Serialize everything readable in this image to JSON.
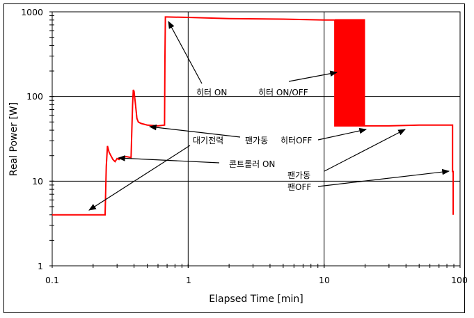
{
  "chart_data": {
    "type": "line",
    "title": "",
    "xlabel": "Elapsed Time [min]",
    "ylabel": "Real Power [W]",
    "xscale": "log",
    "yscale": "log",
    "xlim": [
      0.1,
      100
    ],
    "ylim": [
      1,
      1000
    ],
    "x_ticks": [
      "0.1",
      "1",
      "10",
      "100"
    ],
    "y_ticks": [
      "1",
      "10",
      "100",
      "1000"
    ],
    "grid": "major",
    "legend": "none",
    "series": [
      {
        "name": "Real Power",
        "color": "#ff0000",
        "x": [
          0.1,
          0.245,
          0.25,
          0.255,
          0.262,
          0.27,
          0.28,
          0.29,
          0.3,
          0.31,
          0.32,
          0.35,
          0.38,
          0.385,
          0.39,
          0.395,
          0.4,
          0.41,
          0.42,
          0.43,
          0.45,
          0.5,
          0.6,
          0.67,
          0.675,
          0.68,
          0.7,
          1.0,
          2.0,
          5.0,
          10.0,
          12.0,
          12.0,
          20.0,
          20.0,
          30.0,
          50.0,
          88.0,
          88.0,
          89.0,
          89.0
        ],
        "y": [
          4,
          4,
          15,
          26,
          22,
          20,
          18,
          17,
          18.5,
          18,
          19,
          19.5,
          19,
          40,
          80,
          120,
          115,
          80,
          55,
          50,
          48,
          46,
          45,
          46,
          300,
          870,
          870,
          860,
          830,
          820,
          800,
          800,
          45,
          45,
          45,
          45,
          46,
          46,
          13,
          13,
          4
        ]
      }
    ],
    "oscillation_band": {
      "x_start": 12.0,
      "x_end": 20.0,
      "y_low": 45,
      "y_high": 820,
      "label": "히터 ON/OFF"
    },
    "annotations": [
      {
        "text": "히터 ON",
        "points_to": [
          0.7,
          870
        ]
      },
      {
        "text": "히터 ON/OFF",
        "points_to": [
          12,
          180
        ]
      },
      {
        "text": "팬가동",
        "points_to": [
          0.48,
          47
        ]
      },
      {
        "text": "히터OFF",
        "points_to": [
          20,
          44
        ]
      },
      {
        "text": "대기전력",
        "points_to": [
          0.18,
          4.5
        ]
      },
      {
        "text": "콘트롤러 ON",
        "points_to": [
          0.31,
          19
        ]
      },
      {
        "text": "팬가동",
        "points_to": [
          40,
          44
        ]
      },
      {
        "text": "팬OFF",
        "points_to": [
          80,
          13
        ]
      }
    ]
  },
  "axes": {
    "x_title": "Elapsed Time [min]",
    "y_title": "Real Power [W]",
    "x_tick_labels": [
      "0.1",
      "1",
      "10",
      "100"
    ],
    "y_tick_labels": [
      "1",
      "10",
      "100",
      "1000"
    ]
  },
  "labels": {
    "heater_on": "히터 ON",
    "heater_onoff": "히터 ON/OFF",
    "fan_on_1": "팬가동",
    "heater_off": "히터OFF",
    "standby": "대기전력",
    "controller_on": "콘트롤러 ON",
    "fan_on_2": "팬가동",
    "fan_off": "팬OFF"
  }
}
